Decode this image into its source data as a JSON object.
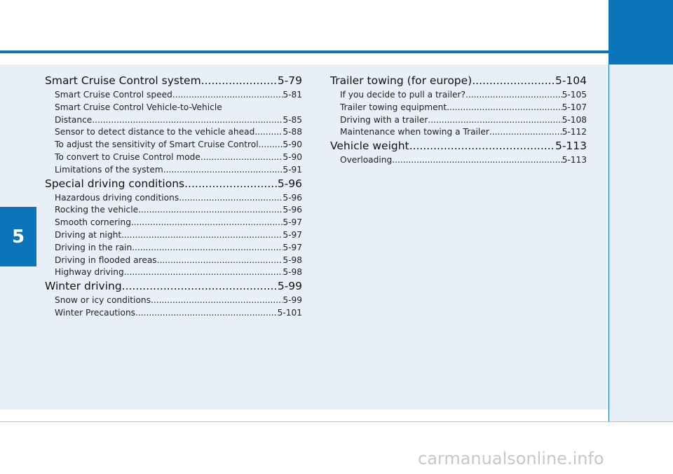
{
  "chapter_number": "5",
  "left_column": [
    {
      "kind": "section",
      "title": "Smart Cruise Control system",
      "page": "5-79"
    },
    {
      "kind": "entry",
      "title": "Smart Cruise Control speed",
      "page": "5-81"
    },
    {
      "kind": "line",
      "title": "Smart Cruise Control Vehicle-to-Vehicle"
    },
    {
      "kind": "entry",
      "title": "Distance",
      "page": "5-85"
    },
    {
      "kind": "entry",
      "title": "Sensor to detect distance to the vehicle ahead",
      "page": "5-88"
    },
    {
      "kind": "entry",
      "title": "To adjust the sensitivity of Smart Cruise Control",
      "page": "5-90"
    },
    {
      "kind": "entry",
      "title": "To convert to Cruise Control mode",
      "page": "5-90"
    },
    {
      "kind": "entry",
      "title": "Limitations of the system",
      "page": "5-91"
    },
    {
      "kind": "section",
      "title": "Special driving conditions",
      "page": "5-96"
    },
    {
      "kind": "entry",
      "title": "Hazardous driving conditions",
      "page": "5-96"
    },
    {
      "kind": "entry",
      "title": "Rocking the vehicle",
      "page": "5-96"
    },
    {
      "kind": "entry",
      "title": "Smooth cornering",
      "page": "5-97"
    },
    {
      "kind": "entry",
      "title": "Driving at night",
      "page": "5-97"
    },
    {
      "kind": "entry",
      "title": "Driving in the rain",
      "page": "5-97"
    },
    {
      "kind": "entry",
      "title": "Driving in flooded areas",
      "page": "5-98"
    },
    {
      "kind": "entry",
      "title": "Highway driving",
      "page": "5-98"
    },
    {
      "kind": "section",
      "title": "Winter driving",
      "page": "5-99"
    },
    {
      "kind": "entry",
      "title": "Snow or icy conditions",
      "page": "5-99"
    },
    {
      "kind": "entry",
      "title": "Winter Precautions",
      "page": "5-101"
    }
  ],
  "right_column": [
    {
      "kind": "section",
      "title": "Trailer towing (for europe)",
      "page": "5-104"
    },
    {
      "kind": "entry",
      "title": "If you decide to pull a trailer?",
      "page": "5-105"
    },
    {
      "kind": "entry",
      "title": "Trailer towing equipment",
      "page": "5-107"
    },
    {
      "kind": "entry",
      "title": "Driving with a trailer",
      "page": "5-108"
    },
    {
      "kind": "entry",
      "title": "Maintenance when towing a Trailer",
      "page": "5-112"
    },
    {
      "kind": "section",
      "title": "Vehicle weight",
      "page": "5-113"
    },
    {
      "kind": "entry",
      "title": "Overloading",
      "page": "5-113"
    }
  ],
  "watermark": "carmanualsonline.info",
  "colors": {
    "accent": "#0a75b8",
    "panel": "#e8eff7"
  }
}
